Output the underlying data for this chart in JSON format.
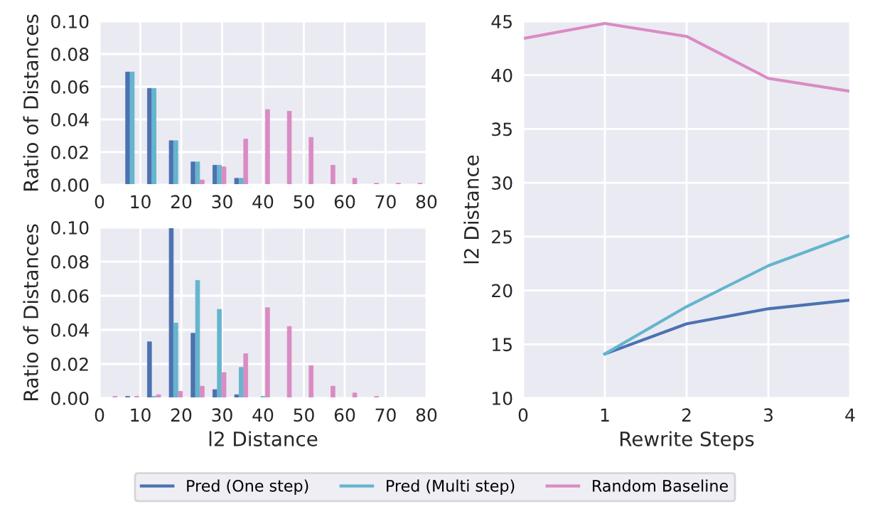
{
  "chart_data": [
    {
      "type": "histogram",
      "ylabel": "Ratio of Distances",
      "bins": [
        0,
        5.33,
        10.67,
        16,
        21.33,
        26.67,
        32,
        37.33,
        42.67,
        48,
        53.33,
        58.67,
        64,
        69.33,
        74.67,
        80
      ],
      "series": [
        {
          "color": "#4c72b0",
          "values": [
            0,
            0.069,
            0.059,
            0.027,
            0.014,
            0.012,
            0.004,
            0,
            0,
            0,
            0,
            0,
            0,
            0,
            0
          ]
        },
        {
          "color": "#64b5cd",
          "values": [
            0,
            0.069,
            0.059,
            0.027,
            0.014,
            0.012,
            0.004,
            0,
            0,
            0,
            0,
            0,
            0,
            0,
            0
          ]
        },
        {
          "color": "#da8bc3",
          "values": [
            0,
            0,
            0,
            0,
            0.003,
            0.011,
            0.028,
            0.046,
            0.045,
            0.029,
            0.012,
            0.004,
            0.001,
            0.001,
            0.001
          ]
        }
      ],
      "xlim": [
        0,
        80
      ],
      "xticks": [
        0,
        10,
        20,
        30,
        40,
        50,
        60,
        70,
        80
      ],
      "ylim": [
        0,
        0.1
      ],
      "yticks": [
        {
          "value": 0,
          "label": "0.00"
        },
        {
          "value": 0.02,
          "label": "0.02"
        },
        {
          "value": 0.04,
          "label": "0.04"
        },
        {
          "value": 0.06,
          "label": "0.06"
        },
        {
          "value": 0.08,
          "label": "0.08"
        },
        {
          "value": 0.1,
          "label": "0.10"
        }
      ],
      "grid": true
    },
    {
      "type": "histogram",
      "xlabel": "l2 Distance",
      "ylabel": "Ratio of Distances",
      "bins": [
        0,
        5.33,
        10.67,
        16,
        21.33,
        26.67,
        32,
        37.33,
        42.67,
        48,
        53.33,
        58.67,
        64,
        69.33,
        74.67,
        80
      ],
      "series": [
        {
          "color": "#4c72b0",
          "values": [
            0,
            0.001,
            0.033,
            0.1,
            0.038,
            0.005,
            0.002,
            0,
            0,
            0,
            0,
            0,
            0,
            0,
            0
          ]
        },
        {
          "color": "#64b5cd",
          "values": [
            0,
            0,
            0.001,
            0.044,
            0.069,
            0.052,
            0.018,
            0.001,
            0,
            0,
            0,
            0,
            0,
            0,
            0
          ]
        },
        {
          "color": "#da8bc3",
          "values": [
            0.001,
            0.001,
            0.002,
            0.004,
            0.007,
            0.015,
            0.026,
            0.053,
            0.042,
            0.019,
            0.007,
            0.003,
            0.001,
            0,
            0
          ]
        }
      ],
      "xlim": [
        0,
        80
      ],
      "xticks": [
        0,
        10,
        20,
        30,
        40,
        50,
        60,
        70,
        80
      ],
      "ylim": [
        0,
        0.1
      ],
      "yticks": [
        {
          "value": 0,
          "label": "0.00"
        },
        {
          "value": 0.02,
          "label": "0.02"
        },
        {
          "value": 0.04,
          "label": "0.04"
        },
        {
          "value": 0.06,
          "label": "0.06"
        },
        {
          "value": 0.08,
          "label": "0.08"
        },
        {
          "value": 0.1,
          "label": "0.10"
        }
      ],
      "grid": true
    },
    {
      "type": "line",
      "xlabel": "Rewrite Steps",
      "ylabel": "l2 Distance",
      "x": [
        0,
        1,
        2,
        3,
        4
      ],
      "series": [
        {
          "name": "Pred (One step)",
          "color": "#4c72b0",
          "values": [
            null,
            14.1,
            16.9,
            18.3,
            19.1
          ]
        },
        {
          "name": "Pred (Multi step)",
          "color": "#64b5cd",
          "values": [
            null,
            14.1,
            18.5,
            22.3,
            25.1
          ]
        },
        {
          "name": "Random Baseline",
          "color": "#da8bc3",
          "values": [
            43.4,
            44.8,
            43.6,
            39.7,
            38.5
          ]
        }
      ],
      "xlim": [
        0,
        4
      ],
      "xticks": [
        0,
        1,
        2,
        3,
        4
      ],
      "ylim": [
        10,
        45
      ],
      "yticks": [
        10,
        15,
        20,
        25,
        30,
        35,
        40,
        45
      ],
      "grid": true,
      "legend": "bottom"
    }
  ]
}
